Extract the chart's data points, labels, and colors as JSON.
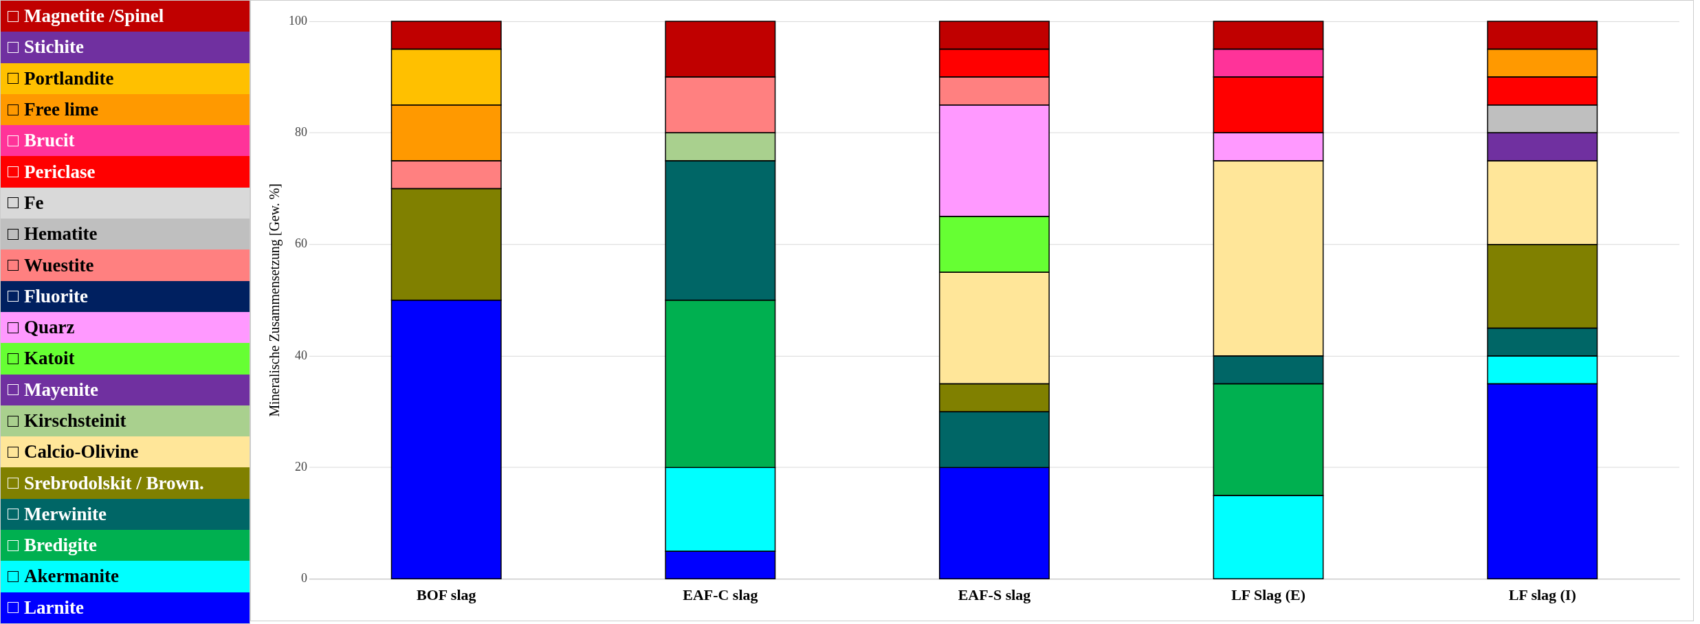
{
  "chart_data": {
    "type": "bar",
    "stacked": true,
    "ylabel": "Mineralische Zusammensetzung [Gew. %]",
    "categories": [
      "BOF slag",
      "EAF-C slag",
      "EAF-S slag",
      "LF Slag (E)",
      "LF slag (I)"
    ],
    "ylim": [
      0,
      100
    ],
    "yticks": [
      0,
      20,
      40,
      60,
      80,
      100
    ],
    "grid": "y",
    "legend": "left",
    "series": [
      {
        "name": "Larnite",
        "color": "#0000ff",
        "values": [
          50,
          5,
          20,
          null,
          35
        ]
      },
      {
        "name": "Akermanite",
        "color": "#00ffff",
        "values": [
          null,
          15,
          null,
          15,
          5
        ]
      },
      {
        "name": "Bredigite",
        "color": "#00b050",
        "values": [
          null,
          30,
          null,
          20,
          null
        ]
      },
      {
        "name": "Merwinite",
        "color": "#006666",
        "values": [
          null,
          25,
          10,
          5,
          5
        ]
      },
      {
        "name": "Srebrodolskit / Brown.",
        "color": "#808000",
        "values": [
          20,
          null,
          5,
          null,
          15
        ]
      },
      {
        "name": "Calcio-Olivine",
        "color": "#ffe699",
        "values": [
          null,
          null,
          20,
          35,
          15
        ]
      },
      {
        "name": "Kirschsteinit",
        "color": "#a9d08e",
        "values": [
          null,
          5,
          null,
          null,
          null
        ]
      },
      {
        "name": "Mayenite",
        "color": "#7030a0",
        "values": [
          null,
          null,
          null,
          null,
          5
        ]
      },
      {
        "name": "Katoit",
        "color": "#66ff33",
        "values": [
          null,
          null,
          10,
          null,
          null
        ]
      },
      {
        "name": "Quarz",
        "color": "#ff99ff",
        "values": [
          null,
          null,
          20,
          5,
          null
        ]
      },
      {
        "name": "Fluorite",
        "color": "#002060",
        "values": [
          null,
          null,
          null,
          null,
          null
        ]
      },
      {
        "name": "Wuestite",
        "color": "#ff8080",
        "values": [
          5,
          10,
          5,
          null,
          null
        ]
      },
      {
        "name": "Hematite",
        "color": "#bfbfbf",
        "values": [
          null,
          null,
          null,
          null,
          5
        ]
      },
      {
        "name": "Fe",
        "color": "#d9d9d9",
        "values": [
          null,
          null,
          null,
          null,
          null
        ]
      },
      {
        "name": "Periclase",
        "color": "#ff0000",
        "values": [
          null,
          null,
          5,
          10,
          5
        ]
      },
      {
        "name": "Brucit",
        "color": "#ff3399",
        "values": [
          null,
          null,
          null,
          5,
          null
        ]
      },
      {
        "name": "Free lime",
        "color": "#ff9900",
        "values": [
          10,
          null,
          null,
          null,
          5
        ]
      },
      {
        "name": "Portlandite",
        "color": "#ffc000",
        "values": [
          10,
          null,
          null,
          null,
          null
        ]
      },
      {
        "name": "Stichite",
        "color": "#7030a0",
        "values": [
          null,
          null,
          null,
          null,
          null
        ]
      },
      {
        "name": "Magnetite /Spinel",
        "color": "#c00000",
        "values": [
          5,
          10,
          5,
          5,
          5
        ]
      }
    ]
  }
}
